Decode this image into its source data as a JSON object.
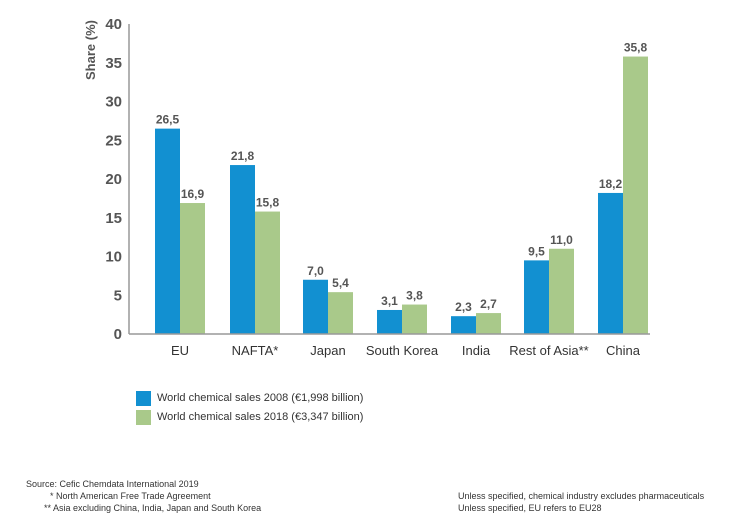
{
  "chart_data": {
    "type": "bar",
    "ylabel": "Share (%)",
    "ylim": [
      0,
      40
    ],
    "yticks": [
      0,
      5,
      10,
      15,
      20,
      25,
      30,
      35,
      40
    ],
    "categories": [
      "EU",
      "NAFTA*",
      "Japan",
      "South Korea",
      "India",
      "Rest of Asia**",
      "China"
    ],
    "series": [
      {
        "name": "World chemical sales 2008 (€1,998 billion)",
        "color": "#1290d1",
        "values": [
          26.5,
          21.8,
          7.0,
          3.1,
          2.3,
          9.5,
          18.2
        ],
        "labels": [
          "26,5",
          "21,8",
          "7,0",
          "3,1",
          "2,3",
          "9,5",
          "18,2"
        ]
      },
      {
        "name": "World chemical sales 2018 (€3,347 billion)",
        "color": "#a9c98a",
        "values": [
          16.9,
          15.8,
          5.4,
          3.8,
          2.7,
          11.0,
          35.8
        ],
        "labels": [
          "16,9",
          "15,8",
          "5,4",
          "3,8",
          "2,7",
          "11,0",
          "35,8"
        ]
      }
    ],
    "axis_color": "#999999"
  },
  "footer": {
    "source": "Source: Cefic Chemdata International 2019",
    "note1": "* North American Free Trade Agreement",
    "note2": "** Asia excluding China, India, Japan and South Korea",
    "note3": "Unless specified, chemical industry excludes pharmaceuticals",
    "note4": "Unless specified, EU refers to EU28"
  }
}
